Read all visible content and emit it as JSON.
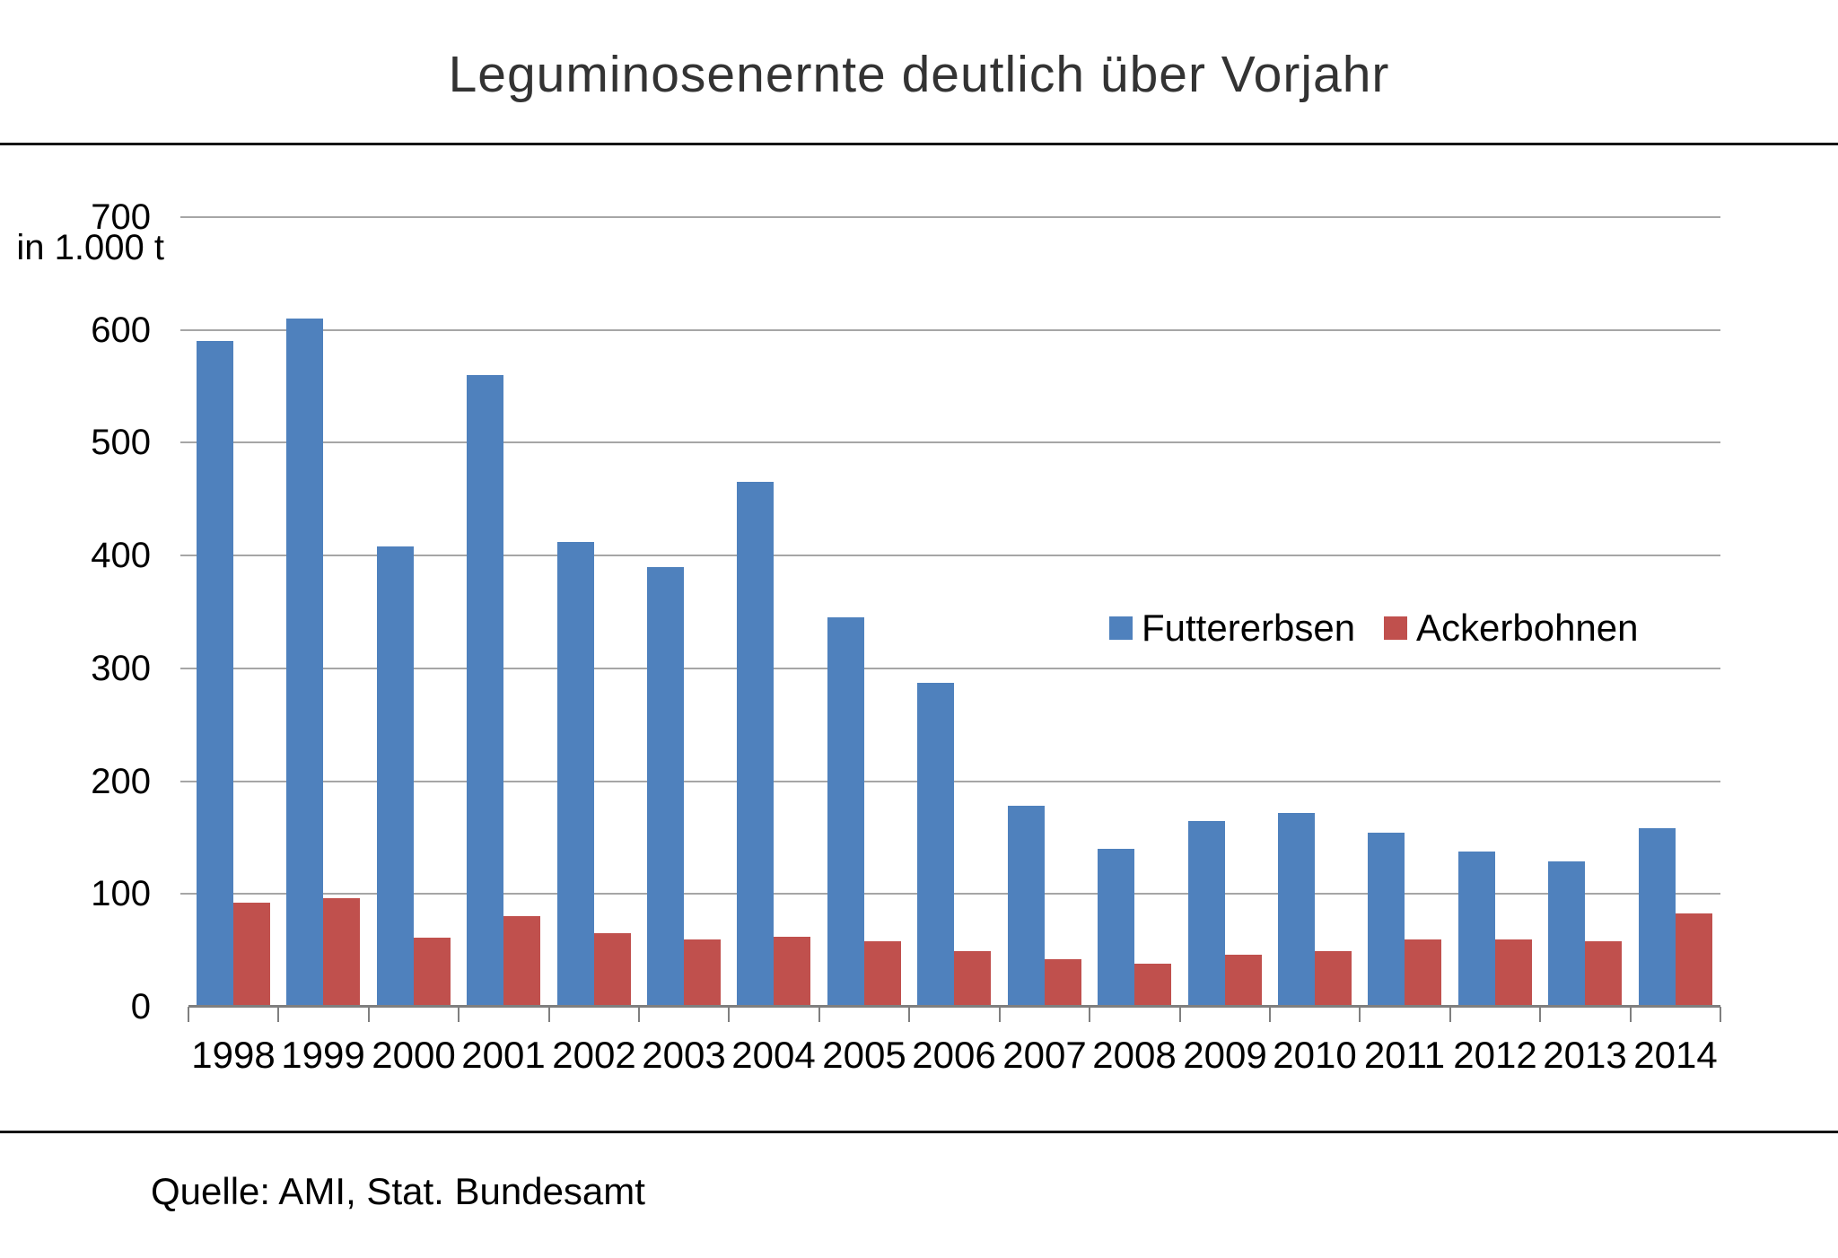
{
  "title": "Leguminosenernte deutlich über Vorjahr",
  "y_axis_unit_label": "in 1.000 t",
  "source": "Quelle: AMI, Stat. Bundesamt",
  "legend": {
    "items": [
      {
        "label": "Futtererbsen",
        "color": "#4f81bd"
      },
      {
        "label": "Ackerbohnen",
        "color": "#c0504d"
      }
    ],
    "position": "inside-right"
  },
  "colors": {
    "futtererbsen": "#4f81bd",
    "ackerbohnen": "#c0504d",
    "gridline": "#a6a6a6",
    "axis": "#7f7f7f",
    "rule": "#141414"
  },
  "chart_data": {
    "type": "bar",
    "title": "Leguminosenernte deutlich über Vorjahr",
    "categories": [
      "1998",
      "1999",
      "2000",
      "2001",
      "2002",
      "2003",
      "2004",
      "2005",
      "2006",
      "2007",
      "2008",
      "2009",
      "2010",
      "2011",
      "2012",
      "2013",
      "2014"
    ],
    "series": [
      {
        "name": "Futtererbsen",
        "color": "#4f81bd",
        "values": [
          590,
          610,
          408,
          560,
          412,
          390,
          465,
          345,
          287,
          178,
          140,
          165,
          172,
          154,
          138,
          129,
          158
        ]
      },
      {
        "name": "Ackerbohnen",
        "color": "#c0504d",
        "values": [
          92,
          96,
          61,
          80,
          65,
          60,
          62,
          58,
          49,
          42,
          38,
          46,
          49,
          60,
          60,
          58,
          83
        ]
      }
    ],
    "xlabel": "",
    "ylabel": "in 1.000 t",
    "ylim": [
      0,
      700
    ],
    "ytick_interval": 100,
    "grid": true,
    "legend_position": "inside-right"
  }
}
